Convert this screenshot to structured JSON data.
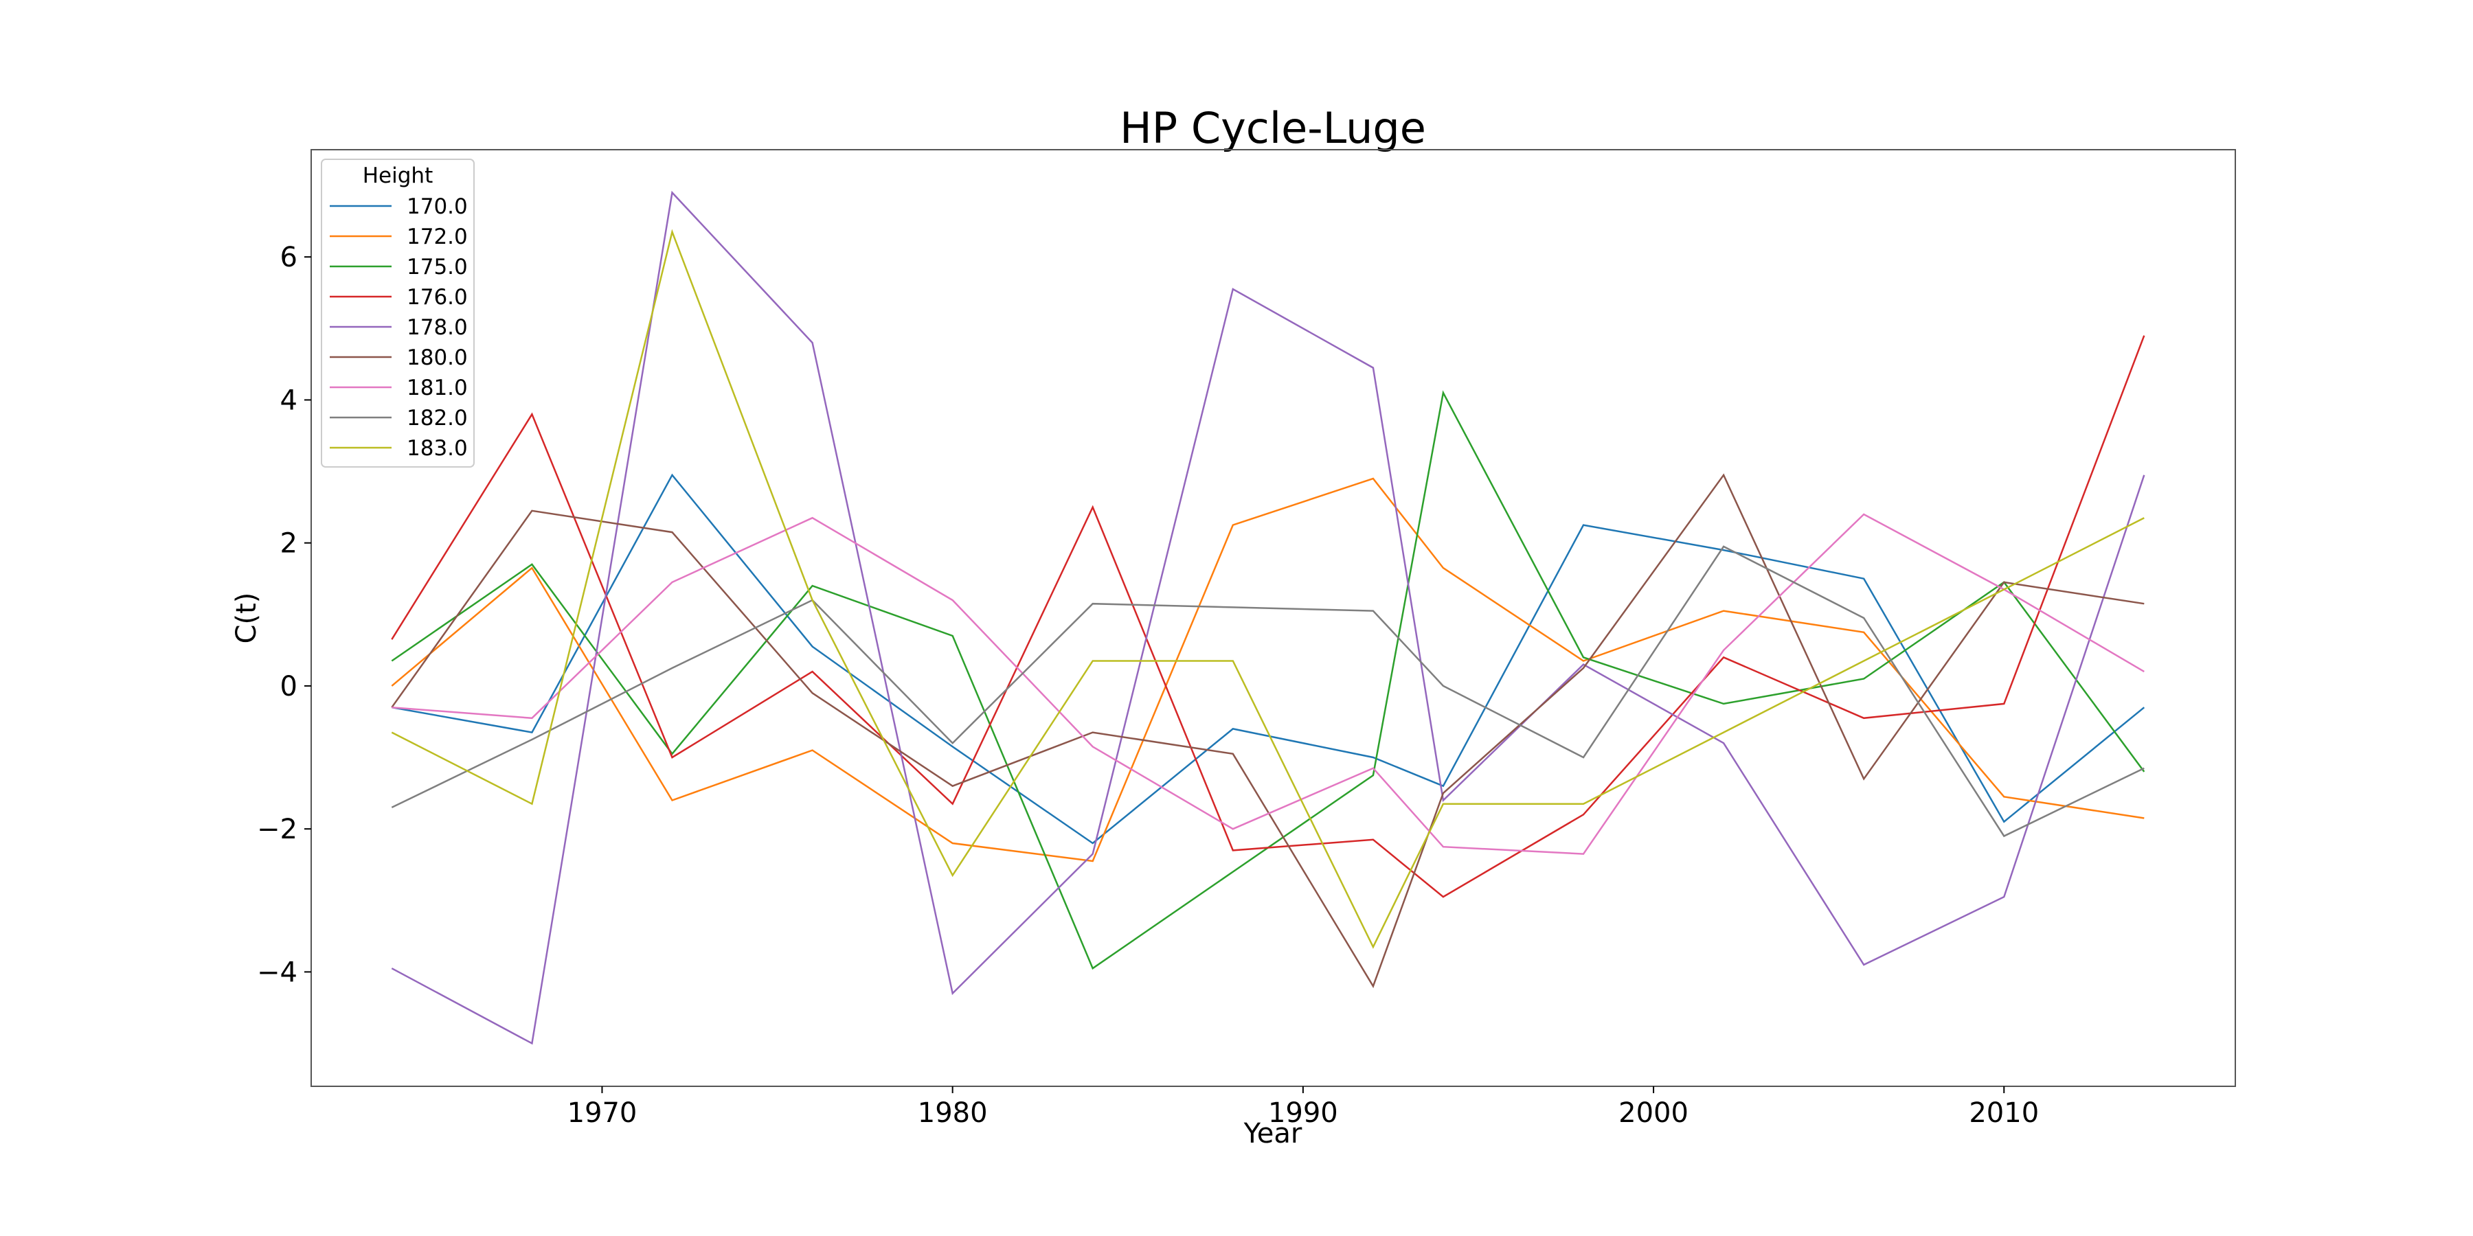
{
  "chart_data": {
    "type": "line",
    "title": "HP Cycle-Luge",
    "xlabel": "Year",
    "ylabel": "C(t)",
    "xlim": [
      1961.7,
      2016.6
    ],
    "ylim": [
      -5.6,
      7.5
    ],
    "xticks": [
      1970,
      1980,
      1990,
      2000,
      2010
    ],
    "yticks": [
      -4,
      -2,
      0,
      2,
      4,
      6
    ],
    "ytick_labels": [
      "−4",
      "−2",
      "0",
      "2",
      "4",
      "6"
    ],
    "grid": false,
    "legend": {
      "title": "Height",
      "placement": "top-left"
    },
    "series": [
      {
        "name": "170.0",
        "color": "#1f77b4",
        "x": [
          1964,
          1968,
          1972,
          1976,
          1980,
          1984,
          1988,
          1992,
          1994,
          1998,
          2002,
          2006,
          2010,
          2014
        ],
        "y": [
          -0.3,
          -0.65,
          2.95,
          0.55,
          -0.85,
          -2.2,
          -0.6,
          -1.0,
          -1.4,
          2.25,
          1.9,
          1.5,
          -1.9,
          -0.3
        ]
      },
      {
        "name": "172.0",
        "color": "#ff7f0e",
        "x": [
          1964,
          1968,
          1972,
          1976,
          1980,
          1984,
          1988,
          1992,
          1994,
          1998,
          2002,
          2006,
          2010,
          2014
        ],
        "y": [
          0.0,
          1.65,
          -1.6,
          -0.9,
          -2.2,
          -2.45,
          2.25,
          2.9,
          1.65,
          0.35,
          1.05,
          0.75,
          -1.55,
          -1.85
        ]
      },
      {
        "name": "175.0",
        "color": "#2ca02c",
        "x": [
          1964,
          1968,
          1972,
          1976,
          1980,
          1984,
          1988,
          1992,
          1994,
          1998,
          2002,
          2006,
          2010,
          2014
        ],
        "y": [
          0.35,
          1.7,
          -0.95,
          1.4,
          0.7,
          -3.95,
          -2.6,
          -1.25,
          4.1,
          0.4,
          -0.25,
          0.1,
          1.45,
          -1.2
        ]
      },
      {
        "name": "176.0",
        "color": "#d62728",
        "x": [
          1964,
          1968,
          1972,
          1976,
          1980,
          1984,
          1988,
          1992,
          1994,
          1998,
          2002,
          2006,
          2010,
          2014
        ],
        "y": [
          0.65,
          3.8,
          -1.0,
          0.2,
          -1.65,
          2.5,
          -2.3,
          -2.15,
          -2.95,
          -1.8,
          0.4,
          -0.45,
          -0.25,
          4.9
        ]
      },
      {
        "name": "178.0",
        "color": "#9467bd",
        "x": [
          1964,
          1968,
          1972,
          1976,
          1980,
          1984,
          1988,
          1992,
          1994,
          1998,
          2002,
          2006,
          2010,
          2014
        ],
        "y": [
          -3.95,
          -5.0,
          6.9,
          4.8,
          -4.3,
          -2.35,
          5.55,
          4.45,
          -1.6,
          0.3,
          -0.8,
          -3.9,
          -2.95,
          2.95
        ]
      },
      {
        "name": "180.0",
        "color": "#8c564b",
        "x": [
          1964,
          1968,
          1972,
          1976,
          1980,
          1984,
          1988,
          1992,
          1994,
          1998,
          2002,
          2006,
          2010,
          2014
        ],
        "y": [
          -0.3,
          2.45,
          2.15,
          -0.1,
          -1.4,
          -0.65,
          -0.95,
          -4.2,
          -1.5,
          0.25,
          2.95,
          -1.3,
          1.45,
          1.15
        ]
      },
      {
        "name": "181.0",
        "color": "#e377c2",
        "x": [
          1964,
          1968,
          1972,
          1976,
          1980,
          1984,
          1988,
          1992,
          1994,
          1998,
          2002,
          2006,
          2010,
          2014
        ],
        "y": [
          -0.3,
          -0.45,
          1.45,
          2.35,
          1.2,
          -0.85,
          -2.0,
          -1.15,
          -2.25,
          -2.35,
          0.5,
          2.4,
          1.35,
          0.2
        ]
      },
      {
        "name": "182.0",
        "color": "#7f7f7f",
        "x": [
          1964,
          1968,
          1972,
          1976,
          1980,
          1984,
          1988,
          1992,
          1994,
          1998,
          2002,
          2006,
          2010,
          2014
        ],
        "y": [
          -1.7,
          -0.75,
          0.25,
          1.2,
          -0.8,
          1.15,
          1.1,
          1.05,
          0.0,
          -1.0,
          1.95,
          0.95,
          -2.1,
          -1.15
        ]
      },
      {
        "name": "183.0",
        "color": "#bcbd22",
        "x": [
          1964,
          1968,
          1972,
          1976,
          1980,
          1984,
          1988,
          1992,
          1994,
          1998,
          2002,
          2006,
          2010,
          2014
        ],
        "y": [
          -0.65,
          -1.65,
          6.35,
          1.2,
          -2.65,
          0.35,
          0.35,
          -3.65,
          -1.65,
          -1.65,
          -0.65,
          0.35,
          1.35,
          2.35
        ]
      }
    ]
  }
}
